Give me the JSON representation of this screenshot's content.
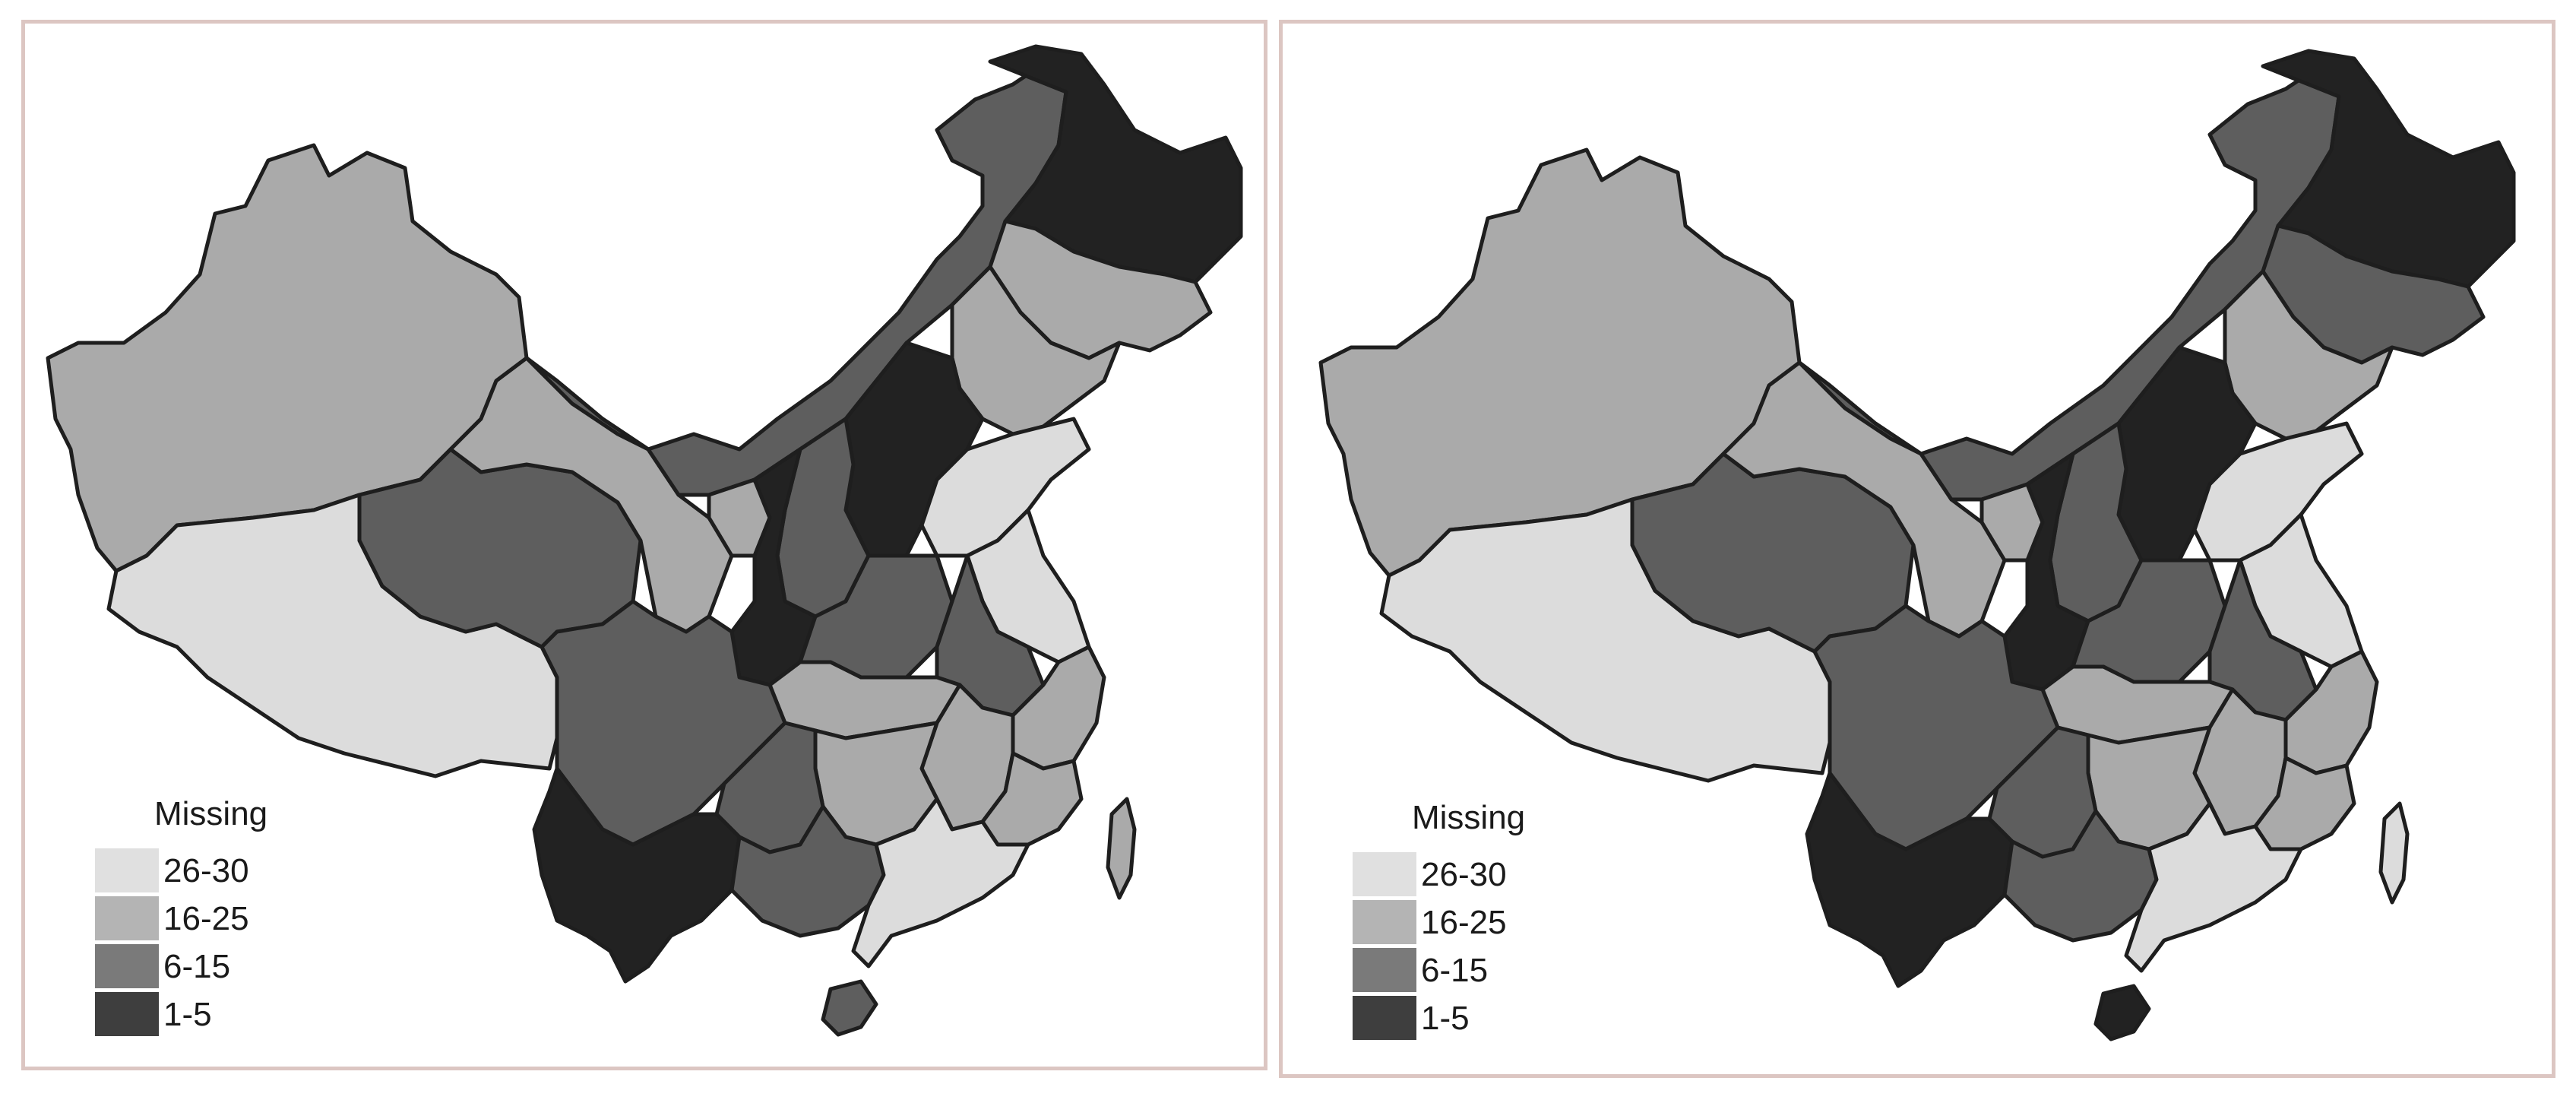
{
  "colors": {
    "class_26_30": "#dcdcdc",
    "class_16_25": "#aaaaaa",
    "class_6_15": "#5e5e5e",
    "class_1_5": "#222222",
    "legend_26_30": "#e0e0e0",
    "legend_16_25": "#b4b4b4",
    "legend_6_15": "#7a7a7a",
    "legend_1_5": "#3e3e3e",
    "frame": "#dcc6c2",
    "outline": "#1e1e1e"
  },
  "maps": [
    {
      "legend": {
        "title": "Missing",
        "classes": [
          {
            "label": "26-30",
            "color_key": "legend_26_30"
          },
          {
            "label": "16-25",
            "color_key": "legend_16_25"
          },
          {
            "label": "6-15",
            "color_key": "legend_6_15"
          },
          {
            "label": "1-5",
            "color_key": "legend_1_5"
          }
        ]
      }
    },
    {
      "legend": {
        "title": "Missing",
        "classes": [
          {
            "label": "26-30",
            "color_key": "legend_26_30"
          },
          {
            "label": "16-25",
            "color_key": "legend_16_25"
          },
          {
            "label": "6-15",
            "color_key": "legend_6_15"
          },
          {
            "label": "1-5",
            "color_key": "legend_1_5"
          }
        ]
      }
    }
  ]
}
